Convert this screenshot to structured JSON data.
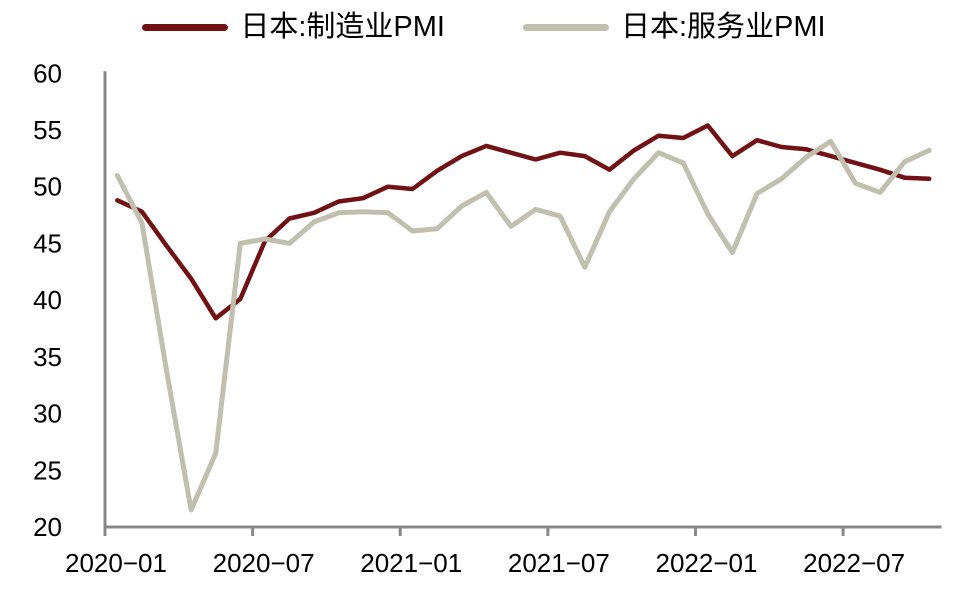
{
  "chart_data": {
    "type": "line",
    "title": "",
    "xlabel": "",
    "ylabel": "",
    "x": [
      "2020-01",
      "2020-02",
      "2020-03",
      "2020-04",
      "2020-05",
      "2020-06",
      "2020-07",
      "2020-08",
      "2020-09",
      "2020-10",
      "2020-11",
      "2020-12",
      "2021-01",
      "2021-02",
      "2021-03",
      "2021-04",
      "2021-05",
      "2021-06",
      "2021-07",
      "2021-08",
      "2021-09",
      "2021-10",
      "2021-11",
      "2021-12",
      "2022-01",
      "2022-02",
      "2022-03",
      "2022-04",
      "2022-05",
      "2022-06",
      "2022-07",
      "2022-08",
      "2022-09",
      "2022-10"
    ],
    "series": [
      {
        "id": "manufacturing-pmi",
        "name": "日本:制造业PMI",
        "color": "#721114",
        "values": [
          48.8,
          47.8,
          44.8,
          41.9,
          38.4,
          40.1,
          45.2,
          47.2,
          47.7,
          48.7,
          49.0,
          50.0,
          49.8,
          51.4,
          52.7,
          53.6,
          53.0,
          52.4,
          53.0,
          52.7,
          51.5,
          53.2,
          54.5,
          54.3,
          55.4,
          52.7,
          54.1,
          53.5,
          53.3,
          52.7,
          52.1,
          51.5,
          50.8,
          50.7
        ]
      },
      {
        "id": "services-pmi",
        "name": "日本:服务业PMI",
        "color": "#c1bfae",
        "values": [
          51.0,
          46.8,
          33.8,
          21.5,
          26.5,
          45.0,
          45.4,
          45.0,
          46.9,
          47.7,
          47.8,
          47.7,
          46.1,
          46.3,
          48.3,
          49.5,
          46.5,
          48.0,
          47.4,
          42.9,
          47.8,
          50.7,
          53.0,
          52.1,
          47.6,
          44.2,
          49.4,
          50.7,
          52.6,
          54.0,
          50.3,
          49.5,
          52.2,
          53.2
        ]
      }
    ],
    "ylim": [
      20,
      60
    ],
    "y_ticks": [
      20,
      25,
      30,
      35,
      40,
      45,
      50,
      55,
      60
    ],
    "x_tick_month_indices": [
      0,
      6,
      12,
      18,
      24,
      30
    ],
    "x_tick_labels": [
      "2020−01",
      "2020−07",
      "2021−01",
      "2021−07",
      "2022−01",
      "2022−07"
    ],
    "grid": false,
    "legend_position": "top-center",
    "axis_color": "#888888",
    "text_color": "#000000",
    "background_color": "#ffffff"
  }
}
